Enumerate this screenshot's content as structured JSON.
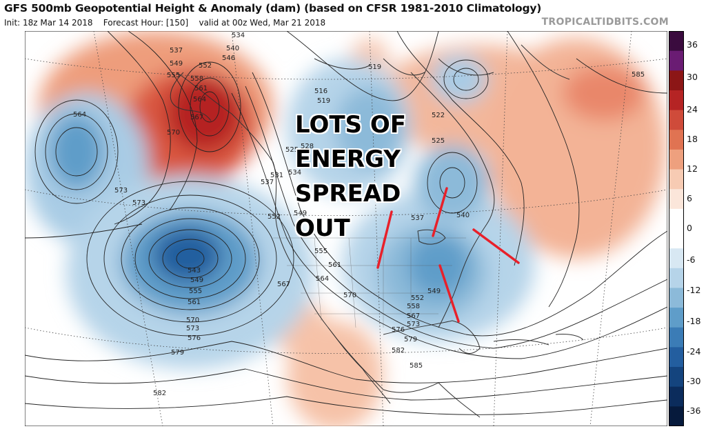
{
  "header": {
    "title": "GFS 500mb Geopotential Height & Anomaly (dam) (based on CFSR 1981-2010 Climatology)",
    "subtitle_parts": [
      "Init: 18z Mar 14 2018",
      "Forecast Hour: [150]",
      "valid at 00z Wed, Mar 21 2018"
    ],
    "watermark": "TROPICALTIDBITS.COM"
  },
  "annotation": {
    "lines": [
      "LOTS OF",
      "ENERGY",
      "SPREAD",
      "OUT"
    ]
  },
  "colorbar": {
    "ticks": [
      "36",
      "30",
      "24",
      "18",
      "12",
      "6",
      "0",
      "-6",
      "-12",
      "-18",
      "-24",
      "-30",
      "-36"
    ],
    "colors": [
      "#3a0b3e",
      "#6a1c73",
      "#8c1616",
      "#b52424",
      "#cf4b3a",
      "#e07352",
      "#eea07e",
      "#f7cbb3",
      "#fbe6da",
      "#ffffff",
      "#ffffff",
      "#d8e8f3",
      "#b6d4e9",
      "#8cbad9",
      "#5f9dc9",
      "#3b7cb6",
      "#235e9f",
      "#14447e",
      "#0b2c5c",
      "#061a3c"
    ]
  },
  "contour_labels": [
    "534",
    "537",
    "540",
    "543",
    "546",
    "549",
    "552",
    "555",
    "558",
    "561",
    "564",
    "567",
    "570",
    "573",
    "576",
    "579",
    "582",
    "585",
    "516",
    "519",
    "522",
    "525",
    "528",
    "531"
  ],
  "map": {
    "colors": {
      "land_line": "#333333",
      "contour": "#222222",
      "annotation_line": "#e8202a",
      "neg_anomaly": "#2f6fae",
      "pos_anomaly": "#c8232a"
    }
  }
}
